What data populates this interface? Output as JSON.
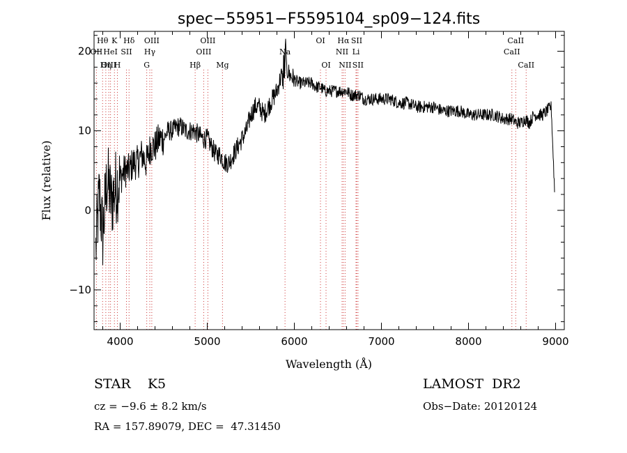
{
  "chart_data": {
    "type": "line",
    "title": "spec−55951−F5595104_sp09−124.fits",
    "xlabel": "Wavelength (Å)",
    "ylabel": "Flux (relative)",
    "xlim": [
      3700,
      9100
    ],
    "ylim": [
      -15,
      22.5
    ],
    "xticks": [
      4000,
      5000,
      6000,
      7000,
      8000,
      9000
    ],
    "yticks": [
      -10,
      0,
      10,
      20
    ],
    "grid": false,
    "series": [
      {
        "values_description_only": "",
        "x": [
          3720,
          3760,
          3800,
          3850,
          3900,
          3950,
          4000,
          4050,
          4100,
          4150,
          4200,
          4250,
          4300,
          4350,
          4400,
          4450,
          4500,
          4550,
          4600,
          4650,
          4700,
          4750,
          4800,
          4850,
          4900,
          4950,
          5000,
          5050,
          5100,
          5150,
          5200,
          5250,
          5300,
          5350,
          5400,
          5450,
          5500,
          5550,
          5600,
          5650,
          5700,
          5750,
          5800,
          5850,
          5880,
          5900,
          5950,
          6000,
          6050,
          6100,
          6150,
          6200,
          6250,
          6300,
          6350,
          6400,
          6450,
          6500,
          6550,
          6600,
          6650,
          6700,
          6750,
          6800,
          6850,
          6900,
          6950,
          7000,
          7100,
          7200,
          7300,
          7400,
          7500,
          7600,
          7700,
          7800,
          7900,
          8000,
          8100,
          8200,
          8300,
          8400,
          8500,
          8550,
          8600,
          8650,
          8700,
          8750,
          8800,
          8850,
          8900,
          8950,
          8990
        ],
        "y": [
          -5,
          2,
          -3,
          4,
          1,
          3,
          4,
          5,
          5,
          6,
          6,
          7,
          6,
          8,
          8,
          9,
          9,
          10,
          10,
          10.5,
          10.5,
          10,
          10,
          10,
          9.5,
          9,
          9,
          8,
          7,
          7,
          6,
          6,
          7,
          8,
          9,
          10,
          12,
          13,
          13,
          12,
          13,
          14,
          15,
          17,
          16,
          18,
          17,
          16.5,
          16,
          16,
          16,
          16,
          15.5,
          15.5,
          15,
          15,
          15,
          15,
          15,
          15,
          14.5,
          14.5,
          14.5,
          14,
          14,
          14,
          14,
          14,
          14,
          13.5,
          13.5,
          13,
          13,
          13,
          12.5,
          12.5,
          12.5,
          12,
          12,
          12,
          12,
          11.5,
          11.5,
          11,
          11,
          11.5,
          11,
          12,
          12,
          12,
          12.5,
          13,
          2
        ]
      }
    ],
    "lines": [
      {
        "label": "Hθ",
        "x": 3798,
        "row": 1
      },
      {
        "label": "K",
        "x": 3934,
        "row": 1
      },
      {
        "label": "Hδ",
        "x": 4102,
        "row": 1
      },
      {
        "label": "OIII",
        "x": 4363,
        "row": 1
      },
      {
        "label": "OIII",
        "x": 5007,
        "row": 1
      },
      {
        "label": "OI",
        "x": 6300,
        "row": 1
      },
      {
        "label": "Hα",
        "x": 6563,
        "row": 1
      },
      {
        "label": "SII",
        "x": 6716,
        "row": 1
      },
      {
        "label": "CaII",
        "x": 8542,
        "row": 1
      },
      {
        "label": "OII",
        "x": 3727,
        "row": 2
      },
      {
        "label": "HeI",
        "x": 3889,
        "row": 2
      },
      {
        "label": "SII",
        "x": 4072,
        "row": 2
      },
      {
        "label": "Hγ",
        "x": 4340,
        "row": 2
      },
      {
        "label": "OIII",
        "x": 4959,
        "row": 2
      },
      {
        "label": "Na",
        "x": 5893,
        "row": 2
      },
      {
        "label": "NII",
        "x": 6548,
        "row": 2
      },
      {
        "label": "Li",
        "x": 6708,
        "row": 2
      },
      {
        "label": "CaII",
        "x": 8498,
        "row": 2
      },
      {
        "label": "OIII",
        "x": 3869,
        "row": 3
      },
      {
        "label": "Hη",
        "x": 3835,
        "row": 3
      },
      {
        "label": "H",
        "x": 3968,
        "row": 3
      },
      {
        "label": "G",
        "x": 4305,
        "row": 3
      },
      {
        "label": "Hβ",
        "x": 4861,
        "row": 3
      },
      {
        "label": "Mg",
        "x": 5175,
        "row": 3
      },
      {
        "label": "OI",
        "x": 6364,
        "row": 3
      },
      {
        "label": "NII",
        "x": 6583,
        "row": 3
      },
      {
        "label": "SII",
        "x": 6731,
        "row": 3
      },
      {
        "label": "CaII",
        "x": 8662,
        "row": 3
      }
    ]
  },
  "info": {
    "object_class": "STAR    K5",
    "survey": "LAMOST  DR2",
    "cz": "cz = −9.6 ± 8.2 km/s",
    "obs_date": "Obs−Date: 20120124",
    "radec": "RA = 157.89079, DEC =  47.31450"
  },
  "colors": {
    "spectrum": "#000000",
    "line_markers": "#cc3333"
  }
}
